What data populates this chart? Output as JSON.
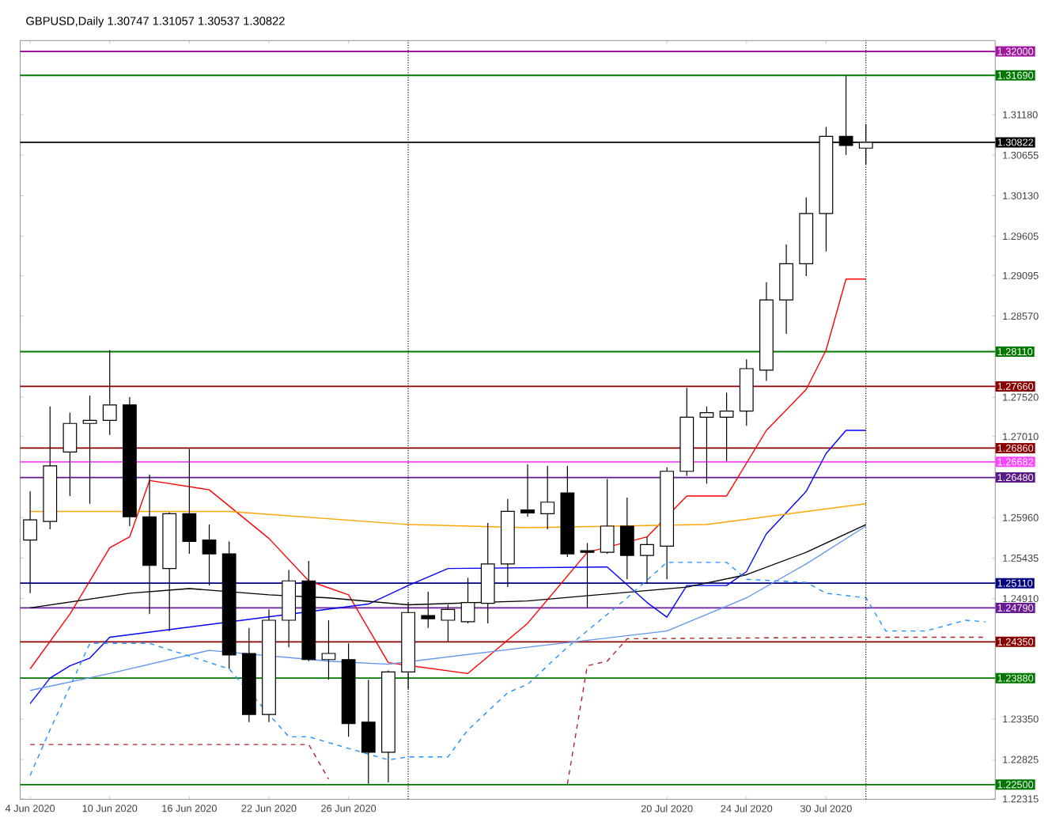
{
  "chart_data": {
    "type": "candlestick",
    "title": "GBPUSD,Daily  1.30747 1.31057 1.30537 1.30822",
    "categories": [
      "4 Jun 2020",
      null,
      null,
      null,
      "10 Jun 2020",
      null,
      null,
      null,
      "16 Jun 2020",
      null,
      null,
      null,
      "22 Jun 2020",
      null,
      null,
      null,
      "26 Jun 2020",
      null,
      null,
      null,
      null,
      null,
      null,
      null,
      null,
      null,
      null,
      null,
      null,
      null,
      null,
      null,
      "20 Jul 2020",
      null,
      null,
      null,
      "24 Jul 2020",
      null,
      null,
      null,
      "30 Jul 2020",
      null,
      null,
      null,
      null,
      null,
      null,
      null,
      null
    ],
    "ohlc": [
      [
        1.2567,
        1.263,
        1.2498,
        1.2593
      ],
      [
        1.2591,
        1.274,
        1.2581,
        1.2663
      ],
      [
        1.2681,
        1.2732,
        1.2624,
        1.2718
      ],
      [
        1.2718,
        1.2754,
        1.2614,
        1.2722
      ],
      [
        1.2722,
        1.2813,
        1.2703,
        1.2742
      ],
      [
        1.2742,
        1.2752,
        1.2585,
        1.2597
      ],
      [
        1.2597,
        1.2652,
        1.2471,
        1.2534
      ],
      [
        1.253,
        1.2603,
        1.2449,
        1.2601
      ],
      [
        1.2601,
        1.2685,
        1.2549,
        1.2565
      ],
      [
        1.2567,
        1.2587,
        1.2508,
        1.2549
      ],
      [
        1.2549,
        1.2565,
        1.24,
        1.2418
      ],
      [
        1.242,
        1.2453,
        1.2331,
        1.2341
      ],
      [
        1.2341,
        1.2477,
        1.2331,
        1.2463
      ],
      [
        1.2463,
        1.2528,
        1.2428,
        1.2514
      ],
      [
        1.2514,
        1.254,
        1.241,
        1.2412
      ],
      [
        1.2412,
        1.2463,
        1.2386,
        1.242
      ],
      [
        1.2412,
        1.2433,
        1.2312,
        1.2329
      ],
      [
        1.2331,
        1.2386,
        1.2251,
        1.2292
      ],
      [
        1.2292,
        1.2398,
        1.2253,
        1.2396
      ],
      [
        1.2396,
        1.2486,
        1.2374,
        1.2473
      ],
      [
        1.2469,
        1.25,
        1.2453,
        1.2465
      ],
      [
        1.2463,
        1.2483,
        1.2435,
        1.2477
      ],
      [
        1.2461,
        1.2518,
        1.2459,
        1.2486
      ],
      [
        1.2485,
        1.2589,
        1.2459,
        1.2536
      ],
      [
        1.2536,
        1.262,
        1.2506,
        1.2604
      ],
      [
        1.2606,
        1.2665,
        1.2597,
        1.2602
      ],
      [
        1.2601,
        1.2663,
        1.2581,
        1.2616
      ],
      [
        1.2628,
        1.2663,
        1.2545,
        1.2549
      ],
      [
        1.2553,
        1.2563,
        1.2479,
        1.2551
      ],
      [
        1.2551,
        1.2646,
        1.2549,
        1.2585
      ],
      [
        1.2585,
        1.2622,
        1.2516,
        1.2547
      ],
      [
        1.2547,
        1.2571,
        1.251,
        1.2561
      ],
      [
        1.2559,
        1.2661,
        1.2516,
        1.2656
      ],
      [
        1.2656,
        1.2764,
        1.265,
        1.2726
      ],
      [
        1.2726,
        1.274,
        1.264,
        1.2732
      ],
      [
        1.2726,
        1.2758,
        1.2669,
        1.2734
      ],
      [
        1.2734,
        1.2801,
        1.2715,
        1.2789
      ],
      [
        1.2787,
        1.2901,
        1.2773,
        1.2878
      ],
      [
        1.2878,
        1.295,
        1.2834,
        1.2925
      ],
      [
        1.2925,
        1.3011,
        1.2909,
        1.299
      ],
      [
        1.299,
        1.3102,
        1.2941,
        1.309
      ],
      [
        1.309,
        1.3169,
        1.3066,
        1.3078
      ],
      [
        1.30747,
        1.31057,
        1.30537,
        1.30822
      ],
      null,
      null,
      null,
      null,
      null,
      null
    ],
    "series": [
      {
        "type": "line",
        "color": "#ff0000",
        "values": [
          1.24,
          null,
          1.2471,
          null,
          1.2557,
          1.2571,
          1.2644,
          null,
          null,
          1.2632,
          null,
          null,
          1.2569,
          null,
          1.2514,
          null,
          1.2496,
          null,
          1.2408,
          null,
          null,
          null,
          1.2394,
          null,
          null,
          1.2459,
          null,
          null,
          1.2551,
          null,
          null,
          1.2571,
          null,
          1.2624,
          null,
          1.2624,
          null,
          1.2709,
          null,
          1.2762,
          1.2813,
          1.2905,
          1.2905,
          null,
          null,
          null,
          null,
          null,
          null
        ]
      },
      {
        "type": "line",
        "color": "#0000ff",
        "values": [
          1.2355,
          1.2388,
          1.2404,
          1.2414,
          1.2441,
          null,
          null,
          null,
          null,
          null,
          null,
          null,
          null,
          null,
          null,
          null,
          null,
          1.2484,
          null,
          1.2508,
          null,
          1.253,
          null,
          null,
          null,
          null,
          null,
          null,
          null,
          1.2532,
          null,
          1.2486,
          1.2467,
          1.2508,
          null,
          1.2508,
          1.2526,
          1.2575,
          null,
          1.263,
          1.2679,
          1.2709,
          1.2709,
          null,
          null,
          null,
          null,
          null,
          null
        ]
      },
      {
        "type": "line",
        "color": "#000000",
        "values": [
          1.2479,
          null,
          null,
          null,
          null,
          1.2498,
          null,
          null,
          1.2504,
          null,
          null,
          null,
          1.2496,
          null,
          null,
          1.2492,
          null,
          null,
          null,
          1.2483,
          null,
          null,
          null,
          null,
          null,
          1.2488,
          null,
          null,
          null,
          null,
          null,
          null,
          null,
          1.2506,
          null,
          null,
          1.2522,
          null,
          null,
          1.2551,
          null,
          null,
          1.2587,
          null,
          null,
          null,
          null,
          null,
          null
        ]
      },
      {
        "type": "line",
        "color": "#ffa500",
        "values": [
          1.2604,
          null,
          null,
          null,
          null,
          null,
          null,
          null,
          null,
          null,
          1.2604,
          null,
          null,
          null,
          null,
          null,
          null,
          null,
          null,
          1.2587,
          null,
          null,
          null,
          null,
          null,
          1.2583,
          null,
          null,
          null,
          null,
          null,
          null,
          null,
          null,
          1.2587,
          null,
          null,
          null,
          null,
          null,
          null,
          null,
          1.2614,
          null,
          null,
          null,
          null,
          null,
          null
        ]
      },
      {
        "type": "line",
        "color": "#6495ed",
        "values": [
          1.2372,
          null,
          null,
          null,
          1.2394,
          null,
          null,
          null,
          null,
          1.2424,
          null,
          null,
          null,
          null,
          null,
          1.241,
          null,
          null,
          1.2406,
          null,
          null,
          null,
          null,
          null,
          null,
          1.2428,
          null,
          null,
          null,
          null,
          null,
          null,
          1.2449,
          null,
          null,
          null,
          1.2492,
          null,
          null,
          1.2536,
          null,
          null,
          1.2585,
          null,
          null,
          null,
          null,
          null,
          null
        ]
      },
      {
        "type": "line",
        "color": "#1e90ff",
        "line_style": "dashed",
        "values": [
          1.2262,
          1.2321,
          null,
          1.2433,
          null,
          null,
          1.2433,
          null,
          null,
          null,
          1.24,
          null,
          1.2341,
          1.2312,
          1.2312,
          null,
          null,
          null,
          1.2282,
          1.2286,
          null,
          1.2286,
          1.2321,
          null,
          1.2369,
          1.238,
          null,
          1.2428,
          null,
          null,
          1.2492,
          null,
          1.2538,
          1.2538,
          null,
          1.2538,
          1.2516,
          null,
          null,
          1.2512,
          1.2498,
          null,
          1.2492,
          1.2449,
          null,
          1.2449,
          null,
          1.2463,
          1.2461
        ]
      },
      {
        "type": "line",
        "color": "#b22222",
        "line_style": "dashed",
        "values": [
          1.2302,
          null,
          null,
          null,
          null,
          null,
          null,
          null,
          null,
          null,
          null,
          null,
          null,
          null,
          1.2302,
          1.2257,
          null,
          null,
          null,
          null,
          null,
          null,
          null,
          null,
          null,
          null,
          null,
          null,
          null,
          null,
          null,
          null,
          null,
          null,
          null,
          null,
          null,
          null,
          null,
          null,
          null,
          null,
          null,
          null,
          null,
          null,
          null,
          null,
          null
        ]
      },
      {
        "type": "line",
        "color": "#b22222",
        "line_style": "dashed",
        "values": [
          null,
          null,
          null,
          null,
          null,
          null,
          null,
          null,
          null,
          null,
          null,
          null,
          null,
          null,
          null,
          null,
          null,
          null,
          null,
          null,
          null,
          null,
          null,
          null,
          null,
          null,
          null,
          1.2251,
          1.2404,
          1.241,
          1.2439,
          null,
          null,
          null,
          null,
          null,
          null,
          null,
          null,
          null,
          null,
          null,
          1.2441,
          null,
          null,
          null,
          null,
          null,
          1.2441
        ]
      }
    ],
    "ylim": [
      1.2231,
      1.3214
    ],
    "yticks": [
      {
        "value": 1.3118,
        "label": "1.31180"
      },
      {
        "value": 1.30655,
        "label": "1.30655"
      },
      {
        "value": 1.3013,
        "label": "1.30130"
      },
      {
        "value": 1.29605,
        "label": "1.29605"
      },
      {
        "value": 1.29095,
        "label": "1.29095"
      },
      {
        "value": 1.2857,
        "label": "1.28570"
      },
      {
        "value": 1.2752,
        "label": "1.27520"
      },
      {
        "value": 1.2701,
        "label": "1.27010"
      },
      {
        "value": 1.2596,
        "label": "1.25960"
      },
      {
        "value": 1.25435,
        "label": "1.25435"
      },
      {
        "value": 1.2491,
        "label": "1.24910"
      },
      {
        "value": 1.2335,
        "label": "1.23350"
      },
      {
        "value": 1.22825,
        "label": "1.22825"
      },
      {
        "value": 1.22315,
        "label": "1.22315"
      }
    ],
    "ref_lines": [
      {
        "axis": "y",
        "value": 1.32,
        "label": "1.32000",
        "color": "#a0189e"
      },
      {
        "axis": "y",
        "value": 1.3169,
        "label": "1.31690",
        "color": "#007800"
      },
      {
        "axis": "y",
        "value": 1.30822,
        "label": "1.30822",
        "color": "#000000"
      },
      {
        "axis": "y",
        "value": 1.2811,
        "label": "1.28110",
        "color": "#007800"
      },
      {
        "axis": "y",
        "value": 1.2766,
        "label": "1.27660",
        "color": "#8b0000"
      },
      {
        "axis": "y",
        "value": 1.2686,
        "label": "1.26860",
        "color": "#8b0000"
      },
      {
        "axis": "y",
        "value": 1.26682,
        "label": "1.26682",
        "color": "#ff44ff"
      },
      {
        "axis": "y",
        "value": 1.2648,
        "label": "1.26480",
        "color": "#5a1a8a"
      },
      {
        "axis": "y",
        "value": 1.2511,
        "label": "1.25110",
        "color": "#000080"
      },
      {
        "axis": "y",
        "value": 1.2479,
        "label": "1.24790",
        "color": "#6a1b9a"
      },
      {
        "axis": "y",
        "value": 1.2435,
        "label": "1.24350",
        "color": "#8b0000"
      },
      {
        "axis": "y",
        "value": 1.2388,
        "label": "1.23880",
        "color": "#007800"
      },
      {
        "axis": "y",
        "value": 1.225,
        "label": "1.22500",
        "color": "#007800"
      }
    ]
  }
}
